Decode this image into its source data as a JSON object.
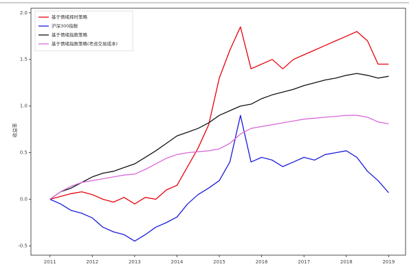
{
  "chart_data": {
    "type": "line",
    "y_label": "收益率",
    "x": [
      2011,
      2011.25,
      2011.5,
      2011.75,
      2012,
      2012.25,
      2012.5,
      2012.75,
      2013,
      2013.25,
      2013.5,
      2013.75,
      2014,
      2014.25,
      2014.5,
      2014.75,
      2015,
      2015.25,
      2015.5,
      2015.75,
      2016,
      2016.25,
      2016.5,
      2016.75,
      2017,
      2017.25,
      2017.5,
      2017.75,
      2018,
      2018.25,
      2018.5,
      2018.75,
      2019
    ],
    "series": [
      {
        "name": "基于情绪择时策略",
        "color": "#e8000b",
        "values": [
          0,
          0.03,
          0.06,
          0.08,
          0.05,
          0.0,
          -0.03,
          0.02,
          -0.05,
          0.02,
          0.0,
          0.1,
          0.15,
          0.35,
          0.55,
          0.8,
          1.3,
          1.6,
          1.85,
          1.4,
          1.45,
          1.5,
          1.4,
          1.5,
          1.55,
          1.6,
          1.65,
          1.7,
          1.75,
          1.8,
          1.7,
          1.45,
          1.45
        ]
      },
      {
        "name": "沪深300指数",
        "color": "#1a1adb",
        "values": [
          0,
          -0.05,
          -0.12,
          -0.15,
          -0.2,
          -0.3,
          -0.35,
          -0.38,
          -0.45,
          -0.38,
          -0.3,
          -0.25,
          -0.19,
          -0.05,
          0.05,
          0.12,
          0.2,
          0.4,
          0.9,
          0.4,
          0.45,
          0.42,
          0.35,
          0.4,
          0.45,
          0.42,
          0.48,
          0.5,
          0.52,
          0.45,
          0.3,
          0.2,
          0.07
        ]
      },
      {
        "name": "基于情绪指数策略",
        "color": "#111111",
        "values": [
          0,
          0.08,
          0.12,
          0.18,
          0.24,
          0.28,
          0.3,
          0.34,
          0.38,
          0.45,
          0.52,
          0.6,
          0.68,
          0.72,
          0.76,
          0.82,
          0.9,
          0.95,
          1.0,
          1.02,
          1.08,
          1.12,
          1.15,
          1.18,
          1.22,
          1.25,
          1.28,
          1.3,
          1.33,
          1.35,
          1.33,
          1.3,
          1.32
        ]
      },
      {
        "name": "基于情绪指数策略(考虑交易成本)",
        "color": "#d86ad8",
        "values": [
          0,
          0.08,
          0.14,
          0.18,
          0.2,
          0.22,
          0.24,
          0.26,
          0.27,
          0.32,
          0.38,
          0.44,
          0.48,
          0.5,
          0.51,
          0.52,
          0.54,
          0.6,
          0.7,
          0.76,
          0.78,
          0.8,
          0.82,
          0.84,
          0.86,
          0.87,
          0.88,
          0.89,
          0.9,
          0.9,
          0.88,
          0.83,
          0.81
        ]
      }
    ],
    "xlim": [
      2010.55,
      2019.4
    ],
    "xticks": [
      2011,
      2012,
      2013,
      2014,
      2015,
      2016,
      2017,
      2018,
      2019
    ],
    "ylim": [
      -0.6,
      2.05
    ],
    "yticks": [
      -0.5,
      {
        "value": 0,
        "label": "0.0"
      },
      0.5,
      {
        "value": 1,
        "label": "1.0"
      },
      1.5,
      {
        "value": 2,
        "label": "2.0"
      }
    ],
    "legend": "upper left"
  }
}
